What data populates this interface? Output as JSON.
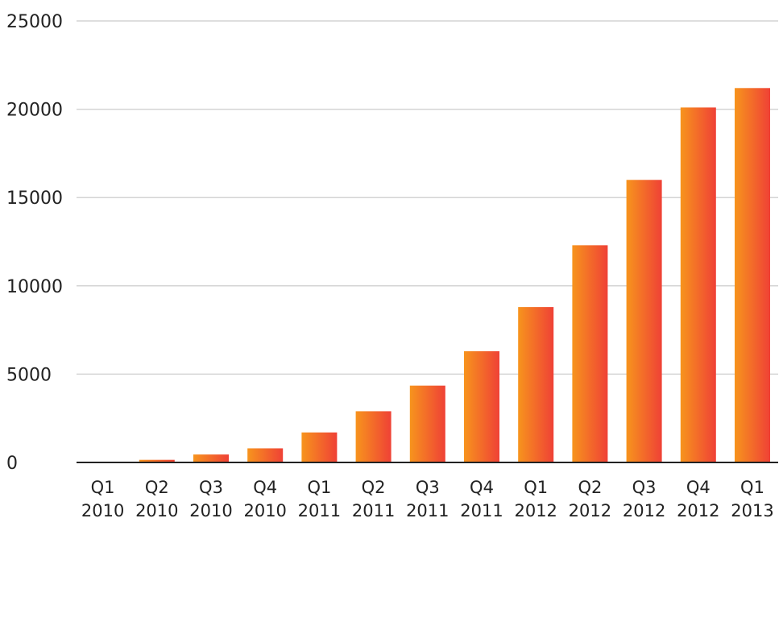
{
  "chart_data": {
    "type": "bar",
    "title": "",
    "xlabel": "",
    "ylabel": "",
    "categories": [
      [
        "Q1",
        "2010"
      ],
      [
        "Q2",
        "2010"
      ],
      [
        "Q3",
        "2010"
      ],
      [
        "Q4",
        "2010"
      ],
      [
        "Q1",
        "2011"
      ],
      [
        "Q2",
        "2011"
      ],
      [
        "Q3",
        "2011"
      ],
      [
        "Q4",
        "2011"
      ],
      [
        "Q1",
        "2012"
      ],
      [
        "Q2",
        "2012"
      ],
      [
        "Q3",
        "2012"
      ],
      [
        "Q4",
        "2012"
      ],
      [
        "Q1",
        "2013"
      ]
    ],
    "values": [
      30,
      150,
      450,
      800,
      1700,
      2900,
      4350,
      6300,
      8800,
      12300,
      16000,
      20100,
      21200
    ],
    "ylim": [
      0,
      25000
    ],
    "yticks": [
      0,
      5000,
      10000,
      15000,
      20000,
      25000
    ],
    "grid": true,
    "legend": "none",
    "colors": {
      "bar_start": "#f7941d",
      "bar_end": "#ef4136",
      "grid": "#d4d4d4",
      "axis": "#222222",
      "text": "#222222"
    }
  }
}
